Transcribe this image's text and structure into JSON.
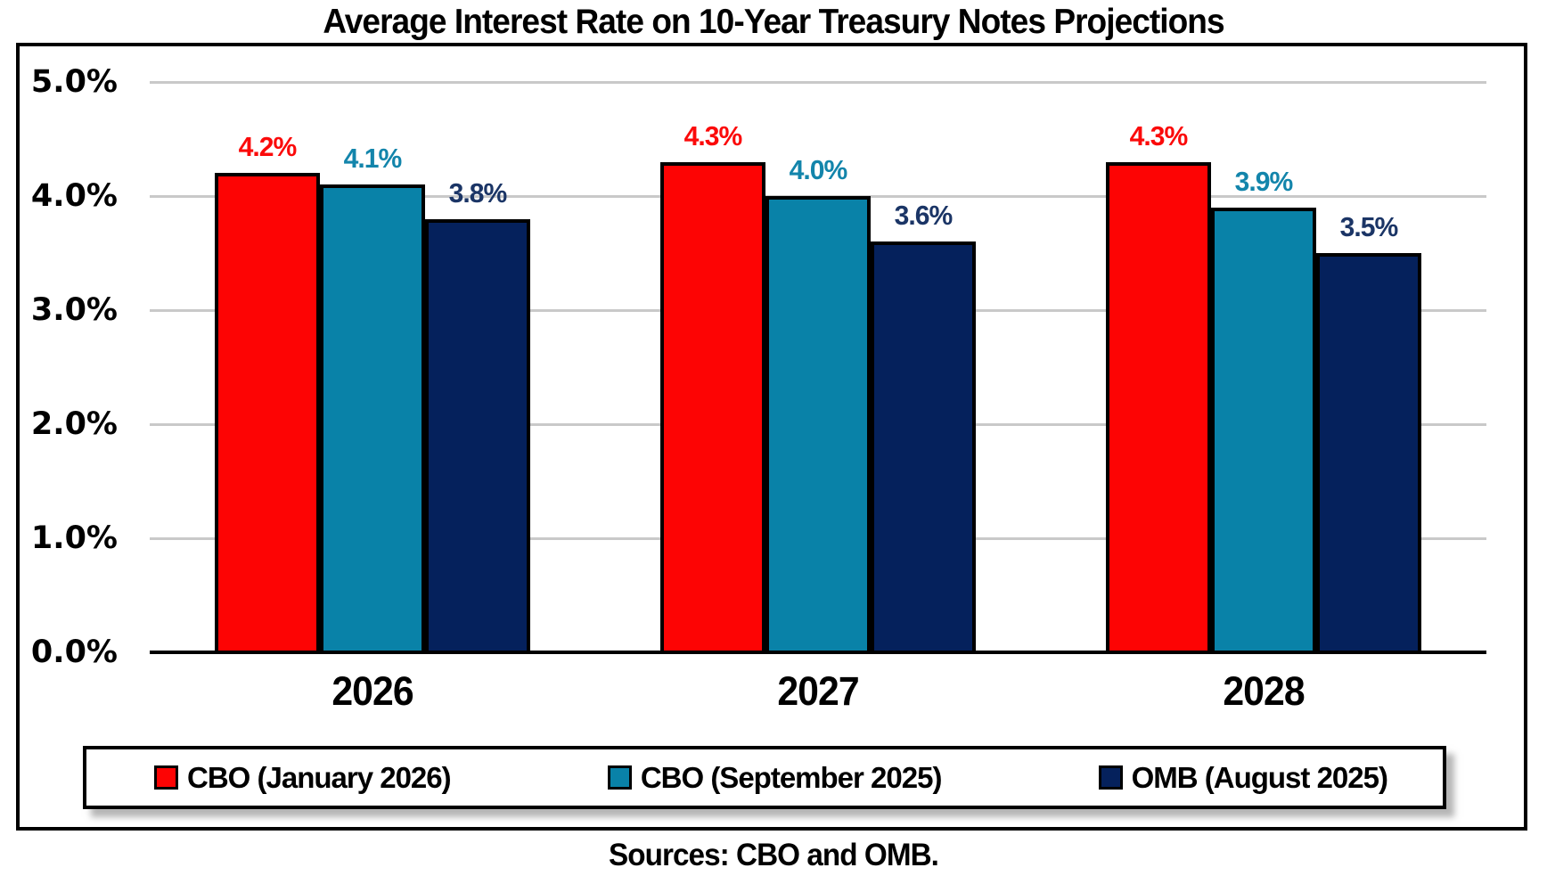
{
  "chart_data": {
    "type": "bar",
    "title": "Average Interest Rate on 10-Year Treasury Notes Projections",
    "categories": [
      "2026",
      "2027",
      "2028"
    ],
    "series": [
      {
        "name": "CBO (January 2026)",
        "color": "#fd0404",
        "label_color": "#fb0a0a",
        "values": [
          4.2,
          4.3,
          4.3
        ],
        "labels": [
          "4.2%",
          "4.3%",
          "4.3%"
        ]
      },
      {
        "name": "CBO (September 2025)",
        "color": "#0982a8",
        "label_color": "#1385ab",
        "values": [
          4.1,
          4.0,
          3.9
        ],
        "labels": [
          "4.1%",
          "4.0%",
          "3.9%"
        ]
      },
      {
        "name": "OMB (August 2025)",
        "color": "#05215c",
        "label_color": "#1b3566",
        "values": [
          3.8,
          3.6,
          3.5
        ],
        "labels": [
          "3.8%",
          "3.6%",
          "3.5%"
        ]
      }
    ],
    "y_axis": {
      "min": 0,
      "max": 5,
      "tick_step": 1,
      "tick_labels": [
        "0.0%",
        "1.0%",
        "2.0%",
        "3.0%",
        "4.0%",
        "5.0%"
      ]
    },
    "grid": true,
    "gridline_color": "#c9c9c9",
    "legend_position": "bottom",
    "source_note": "Sources: CBO and OMB."
  }
}
